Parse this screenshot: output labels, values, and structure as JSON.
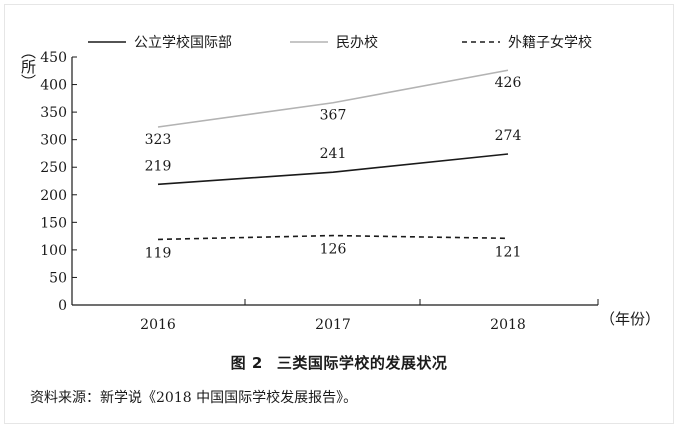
{
  "chart_data": {
    "type": "line",
    "title": "",
    "xlabel": "（年份）",
    "ylabel": "（所）",
    "x": [
      "2016",
      "2017",
      "2018"
    ],
    "ylim": [
      0,
      450
    ],
    "yticks": [
      0,
      50,
      100,
      150,
      200,
      250,
      300,
      350,
      400,
      450
    ],
    "grid": false,
    "legend_position": "top",
    "series": [
      {
        "name": "公立学校国际部",
        "values": [
          219,
          241,
          274
        ],
        "color": "#1a1a1a",
        "style": "solid",
        "labels": [
          "219",
          "241",
          "274"
        ]
      },
      {
        "name": "民办校",
        "values": [
          323,
          367,
          426
        ],
        "color": "#b3b3b3",
        "style": "solid",
        "labels": [
          "323",
          "367",
          "426"
        ]
      },
      {
        "name": "外籍子女学校",
        "values": [
          119,
          126,
          121
        ],
        "color": "#1a1a1a",
        "style": "dashed",
        "labels": [
          "119",
          "126",
          "121"
        ]
      }
    ]
  },
  "figure": {
    "number": "图 2",
    "caption": "三类国际学校的发展状况"
  },
  "source": "资料来源：新学说《2018 中国国际学校发展报告》。"
}
